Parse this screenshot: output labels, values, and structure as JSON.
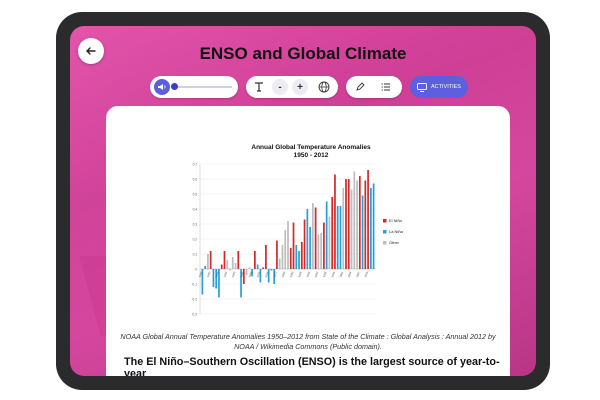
{
  "header": {
    "title": "ENSO and Global Climate"
  },
  "toolbar": {
    "audio_progress": 0.05,
    "font_decrease": "-",
    "font_increase": "+",
    "activities_label": "ACTIVITIES"
  },
  "icons": {
    "back": "back-arrow-icon",
    "volume": "speaker-icon",
    "text_size": "text-size-icon",
    "globe": "globe-icon",
    "pen": "pen-icon",
    "list": "list-icon",
    "activities": "screen-icon"
  },
  "colors": {
    "accent": "#5b5fe0",
    "el_nino": "#d12a2a",
    "la_nina": "#2a9fd6",
    "other": "#bdbdbd"
  },
  "chart_data": {
    "type": "bar",
    "title": "Annual Global Temperature Anomalies",
    "subtitle": "1950 - 2012",
    "ylim": [
      -0.3,
      0.7
    ],
    "y_ticks": [
      "-0.3",
      "-0.2",
      "-0.1",
      "0",
      "0.1",
      "0.2",
      "0.3",
      "0.4",
      "0.5",
      "0.6",
      "0.7"
    ],
    "x_tick_labels": [
      "1950",
      "1953",
      "1956",
      "1959",
      "1962",
      "1965",
      "1968",
      "1971",
      "1974",
      "1977",
      "1980",
      "1983",
      "1986",
      "1989",
      "1992",
      "1995",
      "1998",
      "2001",
      "2004",
      "2007",
      "2010"
    ],
    "legend": [
      "El Niño",
      "La Niña",
      "Other"
    ],
    "legend_position": "right",
    "years": [
      1950,
      1951,
      1952,
      1953,
      1954,
      1955,
      1956,
      1957,
      1958,
      1959,
      1960,
      1961,
      1962,
      1963,
      1964,
      1965,
      1966,
      1967,
      1968,
      1969,
      1970,
      1971,
      1972,
      1973,
      1974,
      1975,
      1976,
      1977,
      1978,
      1979,
      1980,
      1981,
      1982,
      1983,
      1984,
      1985,
      1986,
      1987,
      1988,
      1989,
      1990,
      1991,
      1992,
      1993,
      1994,
      1995,
      1996,
      1997,
      1998,
      1999,
      2000,
      2001,
      2002,
      2003,
      2004,
      2005,
      2006,
      2007,
      2008,
      2009,
      2010,
      2011,
      2012
    ],
    "values": [
      -0.17,
      0.02,
      0.1,
      0.12,
      -0.12,
      -0.13,
      -0.19,
      0.03,
      0.12,
      0.06,
      -0.01,
      0.08,
      0.04,
      0.12,
      -0.19,
      -0.1,
      -0.04,
      0.01,
      -0.05,
      0.12,
      0.03,
      -0.09,
      0.01,
      0.16,
      -0.09,
      -0.01,
      -0.1,
      0.19,
      0.07,
      0.16,
      0.26,
      0.32,
      0.14,
      0.31,
      0.16,
      0.12,
      0.18,
      0.33,
      0.4,
      0.28,
      0.44,
      0.41,
      0.23,
      0.24,
      0.31,
      0.45,
      0.35,
      0.48,
      0.63,
      0.42,
      0.42,
      0.54,
      0.6,
      0.6,
      0.53,
      0.65,
      0.59,
      0.62,
      0.49,
      0.59,
      0.66,
      0.54,
      0.57
    ],
    "types": [
      "L",
      "L",
      "O",
      "E",
      "L",
      "L",
      "L",
      "E",
      "E",
      "O",
      "O",
      "O",
      "O",
      "E",
      "L",
      "E",
      "O",
      "O",
      "L",
      "E",
      "L",
      "L",
      "E",
      "E",
      "L",
      "L",
      "L",
      "E",
      "O",
      "O",
      "O",
      "O",
      "E",
      "E",
      "L",
      "L",
      "E",
      "E",
      "L",
      "L",
      "O",
      "E",
      "O",
      "O",
      "E",
      "L",
      "O",
      "E",
      "E",
      "L",
      "L",
      "O",
      "E",
      "E",
      "O",
      "O",
      "O",
      "E",
      "L",
      "E",
      "E",
      "L",
      "L"
    ]
  },
  "caption": "NOAA Global Annual Temperature Anomalies 1950–2012 from State of the Climate : Global Analysis : Annual 2012 by NOAA / Wikimedia Commons (Public domain).",
  "heading": "The El Niño–Southern Oscillation (ENSO) is the largest source of year-to-year"
}
